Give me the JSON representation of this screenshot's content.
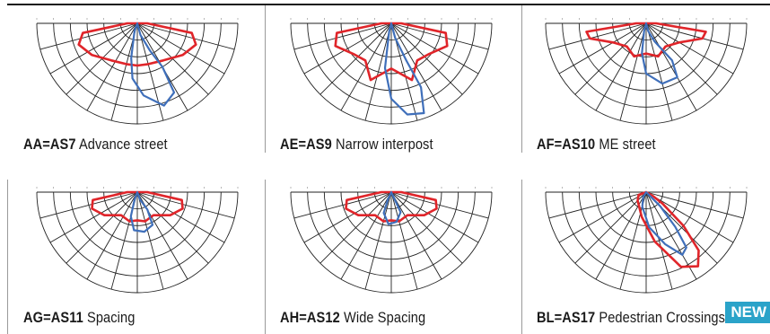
{
  "colors": {
    "red_curve": "#e0252a",
    "blue_curve": "#3f6fba",
    "grid": "#222222",
    "badge": "#2aa3c9"
  },
  "badge": {
    "label": "NEW"
  },
  "cells": [
    {
      "code": "AA=AS7",
      "description": "Advance street",
      "curves": [
        "red-wide",
        "blue-forward-long"
      ]
    },
    {
      "code": "AE=AS9",
      "description": "Narrow interpost",
      "curves": [
        "red-wide-hump",
        "blue-forward-deep"
      ]
    },
    {
      "code": "AF=AS10",
      "description": "ME street",
      "curves": [
        "red-shallow-wide",
        "blue-forward-medium"
      ]
    },
    {
      "code": "AG=AS11",
      "description": "Spacing",
      "curves": [
        "red-shallow",
        "blue-short"
      ]
    },
    {
      "code": "AH=AS12",
      "description": "Wide Spacing",
      "curves": [
        "red-shallow",
        "blue-small"
      ]
    },
    {
      "code": "BL=AS17",
      "description": "Pedestrian Crossings",
      "curves": [
        "red-diagonal",
        "blue-diagonal"
      ]
    }
  ]
}
